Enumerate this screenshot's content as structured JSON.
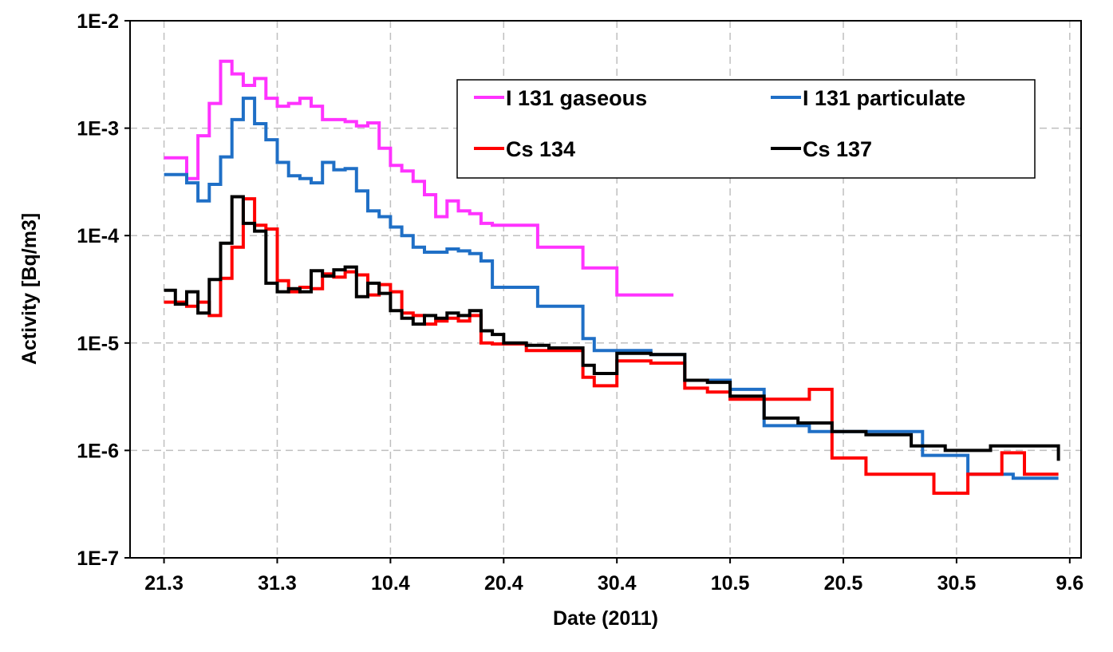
{
  "chart_data": {
    "type": "line",
    "step": true,
    "xlabel": "Date (2011)",
    "ylabel": "Activity [Bq/m3]",
    "yscale": "log",
    "ylim": [
      1e-07,
      0.01
    ],
    "xlim": [
      "2011-03-21",
      "2011-06-09"
    ],
    "grid": true,
    "legend_position": "top-right",
    "x_ticks": [
      {
        "date": "2011-03-21",
        "label": "21.3"
      },
      {
        "date": "2011-03-31",
        "label": "31.3"
      },
      {
        "date": "2011-04-10",
        "label": "10.4"
      },
      {
        "date": "2011-04-20",
        "label": "20.4"
      },
      {
        "date": "2011-04-30",
        "label": "30.4"
      },
      {
        "date": "2011-05-10",
        "label": "10.5"
      },
      {
        "date": "2011-05-20",
        "label": "20.5"
      },
      {
        "date": "2011-05-30",
        "label": "30.5"
      },
      {
        "date": "2011-06-09",
        "label": "9.6"
      }
    ],
    "y_ticks": [
      {
        "value": 0.01,
        "label": "1E-2"
      },
      {
        "value": 0.001,
        "label": "1E-3"
      },
      {
        "value": 0.0001,
        "label": "1E-4"
      },
      {
        "value": 1e-05,
        "label": "1E-5"
      },
      {
        "value": 1e-06,
        "label": "1E-6"
      },
      {
        "value": 1e-07,
        "label": "1E-7"
      }
    ],
    "series": [
      {
        "name": "I 131 gaseous",
        "color": "#ff33ff",
        "x": [
          "2011-03-21",
          "2011-03-23",
          "2011-03-24",
          "2011-03-25",
          "2011-03-26",
          "2011-03-27",
          "2011-03-28",
          "2011-03-29",
          "2011-03-30",
          "2011-03-31",
          "2011-04-01",
          "2011-04-02",
          "2011-04-03",
          "2011-04-04",
          "2011-04-05",
          "2011-04-06",
          "2011-04-07",
          "2011-04-08",
          "2011-04-09",
          "2011-04-10",
          "2011-04-11",
          "2011-04-12",
          "2011-04-13",
          "2011-04-14",
          "2011-04-15",
          "2011-04-16",
          "2011-04-17",
          "2011-04-18",
          "2011-04-19",
          "2011-04-20",
          "2011-04-23",
          "2011-04-27",
          "2011-04-30",
          "2011-05-05"
        ],
        "y": [
          0.00053,
          0.00034,
          0.00085,
          0.0017,
          0.0042,
          0.0032,
          0.0025,
          0.0029,
          0.0019,
          0.0016,
          0.0017,
          0.0019,
          0.0016,
          0.0012,
          0.0012,
          0.00115,
          0.00105,
          0.00112,
          0.00065,
          0.00045,
          0.0004,
          0.00032,
          0.00024,
          0.00015,
          0.00021,
          0.00017,
          0.00016,
          0.00013,
          0.000125,
          0.000125,
          7.8e-05,
          5e-05,
          2.8e-05,
          2.8e-05
        ]
      },
      {
        "name": "I 131 particulate",
        "color": "#1f6fc6",
        "x": [
          "2011-03-21",
          "2011-03-23",
          "2011-03-24",
          "2011-03-25",
          "2011-03-26",
          "2011-03-27",
          "2011-03-28",
          "2011-03-29",
          "2011-03-30",
          "2011-03-31",
          "2011-04-01",
          "2011-04-02",
          "2011-04-03",
          "2011-04-04",
          "2011-04-05",
          "2011-04-06",
          "2011-04-07",
          "2011-04-08",
          "2011-04-09",
          "2011-04-10",
          "2011-04-11",
          "2011-04-12",
          "2011-04-13",
          "2011-04-14",
          "2011-04-15",
          "2011-04-16",
          "2011-04-17",
          "2011-04-18",
          "2011-04-19",
          "2011-04-20",
          "2011-04-23",
          "2011-04-27",
          "2011-04-28",
          "2011-04-30",
          "2011-05-03",
          "2011-05-06",
          "2011-05-10",
          "2011-05-13",
          "2011-05-17",
          "2011-05-22",
          "2011-05-27",
          "2011-05-31",
          "2011-06-04",
          "2011-06-08"
        ],
        "y": [
          0.00037,
          0.00031,
          0.00021,
          0.0003,
          0.00054,
          0.0012,
          0.0019,
          0.0011,
          0.00078,
          0.00048,
          0.00036,
          0.00034,
          0.00031,
          0.00048,
          0.00041,
          0.00042,
          0.00026,
          0.00017,
          0.00015,
          0.00012,
          0.0001,
          7.8e-05,
          7e-05,
          7e-05,
          7.5e-05,
          7.2e-05,
          6.8e-05,
          5.8e-05,
          3.3e-05,
          3.3e-05,
          2.2e-05,
          1.1e-05,
          8.5e-06,
          8.5e-06,
          7.8e-06,
          4.5e-06,
          3.7e-06,
          1.7e-06,
          1.5e-06,
          1.5e-06,
          9e-07,
          6e-07,
          5.5e-07,
          5.5e-07
        ]
      },
      {
        "name": "Cs 134",
        "color": "#ff0000",
        "x": [
          "2011-03-21",
          "2011-03-23",
          "2011-03-24",
          "2011-03-25",
          "2011-03-26",
          "2011-03-27",
          "2011-03-28",
          "2011-03-29",
          "2011-03-30",
          "2011-03-31",
          "2011-04-01",
          "2011-04-02",
          "2011-04-03",
          "2011-04-04",
          "2011-04-05",
          "2011-04-06",
          "2011-04-07",
          "2011-04-08",
          "2011-04-09",
          "2011-04-10",
          "2011-04-11",
          "2011-04-12",
          "2011-04-13",
          "2011-04-14",
          "2011-04-15",
          "2011-04-16",
          "2011-04-17",
          "2011-04-18",
          "2011-04-19",
          "2011-04-20",
          "2011-04-22",
          "2011-04-25",
          "2011-04-27",
          "2011-04-28",
          "2011-04-30",
          "2011-05-01",
          "2011-05-03",
          "2011-05-06",
          "2011-05-08",
          "2011-05-10",
          "2011-05-13",
          "2011-05-16",
          "2011-05-17",
          "2011-05-19",
          "2011-05-20",
          "2011-05-22",
          "2011-05-26",
          "2011-05-28",
          "2011-05-31",
          "2011-06-03",
          "2011-06-05",
          "2011-06-08"
        ],
        "y": [
          2.4e-05,
          2.2e-05,
          2.4e-05,
          1.8e-05,
          4e-05,
          7.8e-05,
          0.00022,
          0.000125,
          0.000115,
          3.8e-05,
          3e-05,
          3.3e-05,
          3.2e-05,
          4.4e-05,
          4.1e-05,
          4.6e-05,
          4.3e-05,
          2.8e-05,
          3.5e-05,
          3e-05,
          1.9e-05,
          1.8e-05,
          1.5e-05,
          1.6e-05,
          1.7e-05,
          1.6e-05,
          1.8e-05,
          1e-05,
          9.8e-06,
          9.8e-06,
          8.5e-06,
          8.5e-06,
          4.8e-06,
          4e-06,
          6.8e-06,
          6.8e-06,
          6.5e-06,
          3.8e-06,
          3.5e-06,
          3e-06,
          3e-06,
          3e-06,
          3.7e-06,
          8.5e-07,
          8.5e-07,
          6e-07,
          6e-07,
          4e-07,
          6e-07,
          9.5e-07,
          6e-07,
          6e-07
        ]
      },
      {
        "name": "Cs 137",
        "color": "#000000",
        "x": [
          "2011-03-21",
          "2011-03-22",
          "2011-03-23",
          "2011-03-24",
          "2011-03-25",
          "2011-03-26",
          "2011-03-27",
          "2011-03-28",
          "2011-03-29",
          "2011-03-30",
          "2011-03-31",
          "2011-04-01",
          "2011-04-02",
          "2011-04-03",
          "2011-04-04",
          "2011-04-05",
          "2011-04-06",
          "2011-04-07",
          "2011-04-08",
          "2011-04-09",
          "2011-04-10",
          "2011-04-11",
          "2011-04-12",
          "2011-04-13",
          "2011-04-14",
          "2011-04-15",
          "2011-04-16",
          "2011-04-17",
          "2011-04-18",
          "2011-04-19",
          "2011-04-20",
          "2011-04-22",
          "2011-04-24",
          "2011-04-27",
          "2011-04-28",
          "2011-04-30",
          "2011-05-01",
          "2011-05-03",
          "2011-05-06",
          "2011-05-08",
          "2011-05-10",
          "2011-05-13",
          "2011-05-16",
          "2011-05-19",
          "2011-05-22",
          "2011-05-26",
          "2011-05-29",
          "2011-06-01",
          "2011-06-02",
          "2011-06-04",
          "2011-06-08"
        ],
        "y": [
          3.1e-05,
          2.3e-05,
          3e-05,
          1.9e-05,
          3.9e-05,
          8.5e-05,
          0.00023,
          0.00013,
          0.00011,
          3.6e-05,
          3e-05,
          3.2e-05,
          3e-05,
          4.7e-05,
          4.2e-05,
          4.8e-05,
          5.1e-05,
          2.7e-05,
          3.6e-05,
          2.9e-05,
          2e-05,
          1.7e-05,
          1.5e-05,
          1.8e-05,
          1.7e-05,
          1.9e-05,
          1.8e-05,
          2e-05,
          1.3e-05,
          1.2e-05,
          1e-05,
          9.5e-06,
          9e-06,
          6.2e-06,
          5.2e-06,
          8e-06,
          8e-06,
          7.8e-06,
          4.5e-06,
          4.3e-06,
          3.2e-06,
          2e-06,
          1.8e-06,
          1.5e-06,
          1.4e-06,
          1.1e-06,
          1e-06,
          1e-06,
          1.1e-06,
          1.1e-06,
          8e-07
        ]
      }
    ]
  }
}
